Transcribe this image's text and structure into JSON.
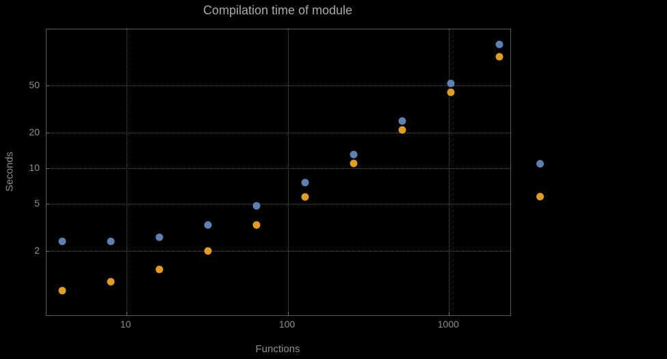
{
  "chart_data": {
    "type": "scatter",
    "title": "Compilation time of module",
    "xlabel": "Functions",
    "ylabel": "Seconds",
    "x_scale": "log",
    "y_scale": "log",
    "xlim": [
      3.2,
      2400
    ],
    "ylim": [
      0.57,
      150
    ],
    "grid": true,
    "grid_style": "dotted",
    "legend_position": "right-outside",
    "x_ticks": [
      {
        "value": 10,
        "label": "10"
      },
      {
        "value": 100,
        "label": "100"
      },
      {
        "value": 1000,
        "label": "1000"
      }
    ],
    "y_ticks": [
      {
        "value": 2,
        "label": "2"
      },
      {
        "value": 5,
        "label": "5"
      },
      {
        "value": 10,
        "label": "10"
      },
      {
        "value": 20,
        "label": "20"
      },
      {
        "value": 50,
        "label": "50"
      }
    ],
    "x": [
      4,
      8,
      16,
      32,
      64,
      128,
      256,
      512,
      1024,
      2048
    ],
    "series": [
      {
        "name": "blue",
        "color": "#5e81b5",
        "values": [
          2.4,
          2.4,
          2.6,
          3.3,
          4.8,
          7.6,
          13,
          25,
          52,
          112
        ]
      },
      {
        "name": "orange",
        "color": "#e19c24",
        "values": [
          0.92,
          1.1,
          1.4,
          2.0,
          3.3,
          5.7,
          11,
          21,
          44,
          88
        ]
      }
    ]
  },
  "colors": {
    "background": "#000000",
    "frame": "#5c5c5c",
    "grid": "#5e5e5e",
    "tick_text": "#8f8f8f",
    "title_text": "#a9a9a9"
  }
}
